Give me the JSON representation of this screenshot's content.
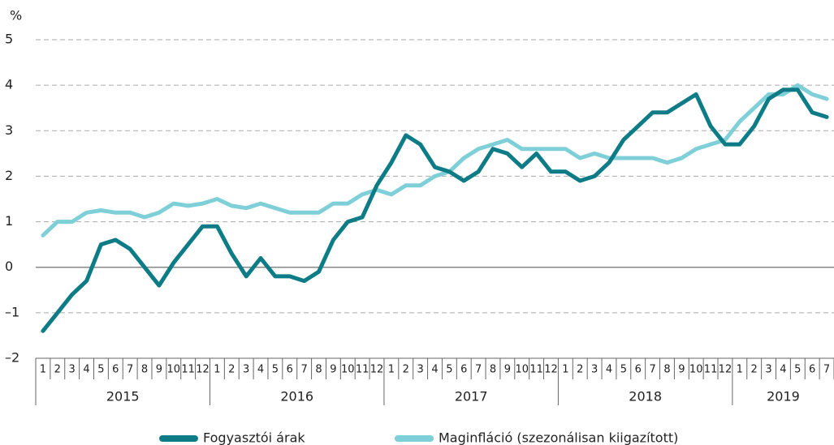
{
  "chart_data": {
    "type": "line",
    "y_unit": "%",
    "categories": [
      "1",
      "2",
      "3",
      "4",
      "5",
      "6",
      "7",
      "8",
      "9",
      "10",
      "11",
      "12",
      "1",
      "2",
      "3",
      "4",
      "5",
      "6",
      "7",
      "8",
      "9",
      "10",
      "11",
      "12",
      "1",
      "2",
      "3",
      "4",
      "5",
      "6",
      "7",
      "8",
      "9",
      "10",
      "11",
      "12",
      "1",
      "2",
      "3",
      "4",
      "5",
      "6",
      "7",
      "8",
      "9",
      "10",
      "11",
      "12",
      "1",
      "2",
      "3",
      "4",
      "5",
      "6",
      "7"
    ],
    "year_groups": [
      "2015",
      "2016",
      "2017",
      "2018",
      "2019"
    ],
    "series": [
      {
        "name": "Fogyasztói árak",
        "color": "#0e7c86",
        "values": [
          -1.4,
          -1.0,
          -0.6,
          -0.3,
          0.5,
          0.6,
          0.4,
          0.0,
          -0.4,
          0.1,
          0.5,
          0.9,
          0.9,
          0.3,
          -0.2,
          0.2,
          -0.2,
          -0.2,
          -0.3,
          -0.1,
          0.6,
          1.0,
          1.1,
          1.8,
          2.3,
          2.9,
          2.7,
          2.2,
          2.1,
          1.9,
          2.1,
          2.6,
          2.5,
          2.2,
          2.5,
          2.1,
          2.1,
          1.9,
          2.0,
          2.3,
          2.8,
          3.1,
          3.4,
          3.4,
          3.6,
          3.8,
          3.1,
          2.7,
          2.7,
          3.1,
          3.7,
          3.9,
          3.9,
          3.4,
          3.3
        ]
      },
      {
        "name": "Maginfláció (szezonálisan kiigazított)",
        "color": "#7fcfd8",
        "values": [
          0.7,
          1.0,
          1.0,
          1.2,
          1.25,
          1.2,
          1.2,
          1.1,
          1.2,
          1.4,
          1.35,
          1.4,
          1.5,
          1.35,
          1.3,
          1.4,
          1.3,
          1.2,
          1.2,
          1.2,
          1.4,
          1.4,
          1.6,
          1.7,
          1.6,
          1.8,
          1.8,
          2.0,
          2.1,
          2.4,
          2.6,
          2.7,
          2.8,
          2.6,
          2.6,
          2.6,
          2.6,
          2.4,
          2.5,
          2.4,
          2.4,
          2.4,
          2.4,
          2.3,
          2.4,
          2.6,
          2.7,
          2.8,
          3.2,
          3.5,
          3.8,
          3.8,
          4.0,
          3.8,
          3.7
        ]
      }
    ],
    "ylim": [
      -2,
      5
    ],
    "yticks": [
      {
        "value": -2,
        "label": "–2"
      },
      {
        "value": -1,
        "label": "–1"
      },
      0,
      1,
      2,
      3,
      4,
      5
    ],
    "grid": true,
    "legend": "bottom"
  }
}
